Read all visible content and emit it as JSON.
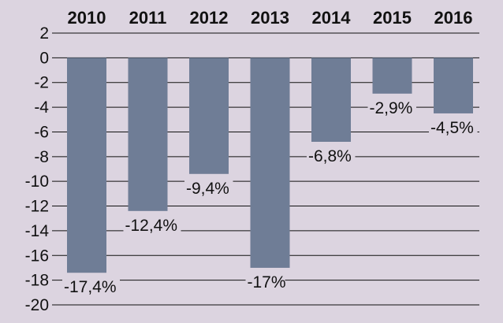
{
  "chart_data": {
    "type": "bar",
    "title": "",
    "xlabel": "",
    "ylabel": "",
    "categories": [
      "2010",
      "2011",
      "2012",
      "2013",
      "2014",
      "2015",
      "2016"
    ],
    "values": [
      -17.4,
      -12.4,
      -9.4,
      -17,
      -6.8,
      -2.9,
      -4.5
    ],
    "data_labels": [
      "-17,4%",
      "-12,4%",
      "-9,4%",
      "-17%",
      "-6,8%",
      "-2,9%",
      "-4,5%"
    ],
    "y_ticks": [
      2,
      0,
      -2,
      -4,
      -6,
      -8,
      -10,
      -12,
      -14,
      -16,
      -18,
      -20
    ],
    "y_tick_labels": [
      "2",
      "0",
      "-2",
      "-4",
      "-6",
      "-8",
      "-10",
      "-12",
      "-14",
      "-16",
      "-18",
      "-20"
    ],
    "ylim": [
      -20,
      2
    ],
    "x_axis_position": "top",
    "grid": true,
    "legend": "none"
  },
  "colors": {
    "background": "#dcd4e0",
    "bar": "#6f7d96",
    "grid": "#111111",
    "text": "#111111"
  }
}
